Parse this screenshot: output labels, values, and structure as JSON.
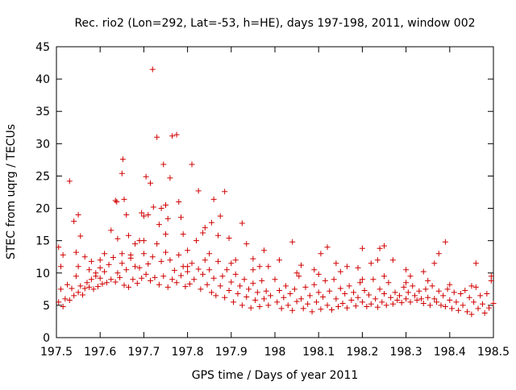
{
  "chart_data": {
    "type": "scatter",
    "title": "Rec. rio2 (Lon=292, Lat=-53, h=HE), days 197-198, 2011, window 002",
    "xlabel": "GPS time / Days of year 2011",
    "ylabel": "STEC from uqrg / TECUs",
    "xlim": [
      197.5,
      198.5
    ],
    "ylim": [
      0,
      45
    ],
    "xticks": [
      197.5,
      197.6,
      197.7,
      197.8,
      197.9,
      198.0,
      198.1,
      198.2,
      198.3,
      198.4,
      198.5
    ],
    "xtick_labels": [
      "197.5",
      "197.6",
      "197.7",
      "197.8",
      "197.9",
      "198",
      "198.1",
      "198.2",
      "198.3",
      "198.4",
      "198.5"
    ],
    "yticks": [
      0,
      5,
      10,
      15,
      20,
      25,
      30,
      35,
      40,
      45
    ],
    "ytick_labels": [
      "0",
      "5",
      "10",
      "15",
      "20",
      "25",
      "30",
      "35",
      "40",
      "45"
    ],
    "marker": "+",
    "grid": false,
    "series": [
      {
        "name": "STEC",
        "color": "#d00000",
        "points": [
          [
            197.505,
            14.0
          ],
          [
            197.51,
            11.0
          ],
          [
            197.515,
            12.8
          ],
          [
            197.53,
            24.2
          ],
          [
            197.54,
            18.0
          ],
          [
            197.545,
            13.2
          ],
          [
            197.55,
            19.0
          ],
          [
            197.555,
            15.7
          ],
          [
            197.565,
            12.5
          ],
          [
            197.575,
            10.5
          ],
          [
            197.58,
            11.8
          ],
          [
            197.59,
            9.5
          ],
          [
            197.6,
            10.8
          ],
          [
            197.61,
            13.0
          ],
          [
            197.625,
            16.6
          ],
          [
            197.635,
            21.2
          ],
          [
            197.638,
            21.0
          ],
          [
            197.64,
            15.3
          ],
          [
            197.65,
            25.4
          ],
          [
            197.652,
            27.6
          ],
          [
            197.655,
            21.4
          ],
          [
            197.66,
            19.0
          ],
          [
            197.665,
            15.8
          ],
          [
            197.67,
            12.8
          ],
          [
            197.68,
            14.5
          ],
          [
            197.69,
            15.0
          ],
          [
            197.695,
            19.3
          ],
          [
            197.7,
            18.8
          ],
          [
            197.705,
            24.9
          ],
          [
            197.71,
            19.0
          ],
          [
            197.715,
            23.9
          ],
          [
            197.72,
            41.5
          ],
          [
            197.722,
            20.2
          ],
          [
            197.73,
            31.0
          ],
          [
            197.735,
            17.5
          ],
          [
            197.74,
            20.0
          ],
          [
            197.745,
            26.8
          ],
          [
            197.75,
            20.5
          ],
          [
            197.755,
            18.4
          ],
          [
            197.76,
            24.7
          ],
          [
            197.765,
            31.2
          ],
          [
            197.775,
            31.4
          ],
          [
            197.78,
            21.0
          ],
          [
            197.785,
            18.6
          ],
          [
            197.79,
            16.0
          ],
          [
            197.8,
            13.5
          ],
          [
            197.81,
            26.8
          ],
          [
            197.825,
            22.7
          ],
          [
            197.835,
            16.2
          ],
          [
            197.84,
            17.0
          ],
          [
            197.855,
            17.8
          ],
          [
            197.86,
            21.4
          ],
          [
            197.87,
            15.8
          ],
          [
            197.875,
            18.8
          ],
          [
            197.885,
            22.6
          ],
          [
            197.895,
            15.4
          ],
          [
            197.91,
            12.0
          ],
          [
            197.925,
            17.7
          ],
          [
            197.935,
            14.5
          ],
          [
            197.95,
            12.2
          ],
          [
            197.965,
            11.0
          ],
          [
            197.975,
            13.5
          ],
          [
            197.985,
            11.0
          ],
          [
            198.01,
            12.0
          ],
          [
            198.04,
            14.8
          ],
          [
            198.06,
            11.2
          ],
          [
            198.09,
            10.5
          ],
          [
            198.105,
            13.0
          ],
          [
            198.12,
            14.0
          ],
          [
            198.14,
            11.5
          ],
          [
            198.165,
            11.0
          ],
          [
            198.19,
            10.8
          ],
          [
            198.2,
            13.8
          ],
          [
            198.22,
            11.5
          ],
          [
            198.235,
            12.0
          ],
          [
            198.24,
            13.8
          ],
          [
            198.25,
            14.2
          ],
          [
            198.27,
            12.0
          ],
          [
            198.3,
            10.5
          ],
          [
            198.31,
            9.5
          ],
          [
            198.34,
            10.2
          ],
          [
            198.365,
            11.5
          ],
          [
            198.375,
            13.0
          ],
          [
            198.39,
            14.8
          ],
          [
            198.46,
            11.5
          ],
          [
            197.505,
            5.5
          ],
          [
            197.51,
            7.5
          ],
          [
            197.515,
            4.8
          ],
          [
            197.52,
            6.0
          ],
          [
            197.525,
            8.2
          ],
          [
            197.53,
            5.8
          ],
          [
            197.535,
            7.6
          ],
          [
            197.54,
            6.5
          ],
          [
            197.545,
            9.5
          ],
          [
            197.55,
            7.0
          ],
          [
            197.555,
            8.0
          ],
          [
            197.56,
            6.6
          ],
          [
            197.565,
            7.6
          ],
          [
            197.57,
            8.5
          ],
          [
            197.575,
            7.8
          ],
          [
            197.58,
            9.0
          ],
          [
            197.585,
            7.5
          ],
          [
            197.59,
            10.0
          ],
          [
            197.595,
            7.9
          ],
          [
            197.6,
            9.2
          ],
          [
            197.605,
            8.3
          ],
          [
            197.61,
            10.2
          ],
          [
            197.615,
            8.5
          ],
          [
            197.62,
            11.3
          ],
          [
            197.625,
            9.0
          ],
          [
            197.63,
            12.4
          ],
          [
            197.635,
            8.6
          ],
          [
            197.64,
            10.0
          ],
          [
            197.645,
            9.3
          ],
          [
            197.65,
            11.5
          ],
          [
            197.655,
            8.1
          ],
          [
            197.66,
            10.5
          ],
          [
            197.665,
            7.8
          ],
          [
            197.67,
            12.3
          ],
          [
            197.675,
            9.0
          ],
          [
            197.68,
            11.0
          ],
          [
            197.685,
            8.4
          ],
          [
            197.69,
            10.8
          ],
          [
            197.695,
            9.2
          ],
          [
            197.7,
            13.0
          ],
          [
            197.705,
            9.8
          ],
          [
            197.71,
            11.4
          ],
          [
            197.715,
            8.8
          ],
          [
            197.72,
            12.5
          ],
          [
            197.725,
            9.3
          ],
          [
            197.73,
            14.5
          ],
          [
            197.735,
            8.2
          ],
          [
            197.74,
            11.8
          ],
          [
            197.745,
            9.5
          ],
          [
            197.75,
            13.2
          ],
          [
            197.755,
            7.8
          ],
          [
            197.76,
            12.0
          ],
          [
            197.765,
            9.0
          ],
          [
            197.77,
            10.4
          ],
          [
            197.775,
            8.5
          ],
          [
            197.78,
            12.8
          ],
          [
            197.785,
            9.6
          ],
          [
            197.79,
            11.0
          ],
          [
            197.795,
            7.9
          ],
          [
            197.8,
            10.2
          ],
          [
            197.805,
            8.3
          ],
          [
            197.81,
            11.5
          ],
          [
            197.815,
            9.0
          ],
          [
            197.82,
            15.0
          ],
          [
            197.825,
            10.6
          ],
          [
            197.83,
            7.5
          ],
          [
            197.835,
            9.8
          ],
          [
            197.84,
            12.0
          ],
          [
            197.845,
            8.2
          ],
          [
            197.85,
            10.5
          ],
          [
            197.855,
            7.0
          ],
          [
            197.86,
            9.2
          ],
          [
            197.865,
            6.5
          ],
          [
            197.87,
            11.8
          ],
          [
            197.875,
            8.0
          ],
          [
            197.88,
            9.5
          ],
          [
            197.885,
            6.2
          ],
          [
            197.89,
            10.5
          ],
          [
            197.895,
            7.3
          ],
          [
            197.9,
            8.6
          ],
          [
            197.905,
            5.5
          ],
          [
            197.91,
            9.8
          ],
          [
            197.915,
            6.8
          ],
          [
            197.92,
            8.0
          ],
          [
            197.925,
            5.0
          ],
          [
            197.93,
            9.0
          ],
          [
            197.935,
            6.3
          ],
          [
            197.94,
            7.5
          ],
          [
            197.945,
            4.6
          ],
          [
            197.95,
            8.4
          ],
          [
            197.955,
            5.8
          ],
          [
            197.96,
            7.0
          ],
          [
            197.965,
            4.8
          ],
          [
            197.97,
            8.8
          ],
          [
            197.975,
            6.0
          ],
          [
            197.98,
            7.2
          ],
          [
            197.985,
            5.0
          ],
          [
            197.99,
            6.5
          ],
          [
            198.005,
            5.5
          ],
          [
            198.01,
            7.3
          ],
          [
            198.015,
            4.5
          ],
          [
            198.02,
            6.2
          ],
          [
            198.025,
            8.0
          ],
          [
            198.03,
            5.0
          ],
          [
            198.035,
            6.8
          ],
          [
            198.04,
            4.2
          ],
          [
            198.045,
            7.5
          ],
          [
            198.05,
            5.6
          ],
          [
            198.055,
            9.5
          ],
          [
            198.06,
            6.0
          ],
          [
            198.065,
            4.5
          ],
          [
            198.07,
            7.8
          ],
          [
            198.075,
            5.2
          ],
          [
            198.08,
            6.5
          ],
          [
            198.085,
            4.0
          ],
          [
            198.09,
            8.2
          ],
          [
            198.095,
            5.5
          ],
          [
            198.1,
            7.0
          ],
          [
            198.105,
            4.4
          ],
          [
            198.11,
            6.3
          ],
          [
            198.115,
            8.8
          ],
          [
            198.12,
            5.0
          ],
          [
            198.125,
            7.2
          ],
          [
            198.13,
            4.3
          ],
          [
            198.135,
            9.0
          ],
          [
            198.14,
            6.0
          ],
          [
            198.145,
            4.8
          ],
          [
            198.15,
            7.6
          ],
          [
            198.155,
            5.3
          ],
          [
            198.16,
            6.8
          ],
          [
            198.165,
            4.6
          ],
          [
            198.17,
            8.0
          ],
          [
            198.175,
            5.8
          ],
          [
            198.18,
            7.0
          ],
          [
            198.185,
            4.9
          ],
          [
            198.19,
            6.2
          ],
          [
            198.195,
            8.5
          ],
          [
            198.2,
            5.5
          ],
          [
            198.205,
            7.3
          ],
          [
            198.21,
            4.8
          ],
          [
            198.215,
            6.6
          ],
          [
            198.22,
            5.2
          ],
          [
            198.225,
            9.0
          ],
          [
            198.23,
            6.0
          ],
          [
            198.235,
            4.7
          ],
          [
            198.24,
            7.5
          ],
          [
            198.245,
            5.5
          ],
          [
            198.25,
            6.8
          ],
          [
            198.255,
            5.0
          ],
          [
            198.26,
            8.5
          ],
          [
            198.265,
            6.2
          ],
          [
            198.27,
            5.2
          ],
          [
            198.275,
            7.0
          ],
          [
            198.28,
            5.8
          ],
          [
            198.285,
            6.5
          ],
          [
            198.29,
            5.4
          ],
          [
            198.295,
            7.8
          ],
          [
            198.3,
            6.0
          ],
          [
            198.305,
            7.0
          ],
          [
            198.31,
            5.5
          ],
          [
            198.315,
            8.0
          ],
          [
            198.32,
            6.5
          ],
          [
            198.325,
            5.8
          ],
          [
            198.33,
            7.2
          ],
          [
            198.335,
            6.0
          ],
          [
            198.34,
            5.3
          ],
          [
            198.345,
            7.5
          ],
          [
            198.35,
            6.2
          ],
          [
            198.355,
            5.0
          ],
          [
            198.36,
            8.0
          ],
          [
            198.365,
            6.0
          ],
          [
            198.37,
            5.5
          ],
          [
            198.375,
            7.2
          ],
          [
            198.38,
            5.0
          ],
          [
            198.385,
            6.5
          ],
          [
            198.39,
            4.8
          ],
          [
            198.395,
            7.5
          ],
          [
            198.4,
            5.8
          ],
          [
            198.405,
            4.5
          ],
          [
            198.41,
            7.0
          ],
          [
            198.415,
            5.5
          ],
          [
            198.42,
            4.2
          ],
          [
            198.425,
            6.8
          ],
          [
            198.43,
            5.0
          ],
          [
            198.435,
            7.3
          ],
          [
            198.44,
            4.0
          ],
          [
            198.445,
            6.2
          ],
          [
            198.45,
            3.6
          ],
          [
            198.455,
            5.5
          ],
          [
            198.46,
            7.8
          ],
          [
            198.465,
            4.5
          ],
          [
            198.47,
            6.5
          ],
          [
            198.475,
            5.2
          ],
          [
            198.48,
            3.8
          ],
          [
            198.485,
            6.8
          ],
          [
            198.49,
            4.6
          ],
          [
            198.495,
            8.8
          ],
          [
            198.5,
            5.3
          ],
          [
            198.495,
            9.5
          ],
          [
            198.45,
            8.0
          ],
          [
            198.4,
            8.2
          ],
          [
            198.35,
            8.8
          ],
          [
            198.3,
            8.5
          ],
          [
            198.25,
            9.5
          ],
          [
            198.2,
            9.0
          ],
          [
            198.15,
            10.2
          ],
          [
            198.1,
            9.8
          ],
          [
            198.05,
            10.0
          ],
          [
            198.0,
            9.0
          ],
          [
            197.95,
            10.5
          ],
          [
            197.9,
            11.5
          ],
          [
            197.85,
            13.0
          ],
          [
            197.8,
            11.0
          ],
          [
            197.75,
            16.0
          ],
          [
            197.7,
            15.0
          ],
          [
            197.65,
            13.0
          ],
          [
            197.6,
            12.0
          ],
          [
            197.55,
            11.0
          ]
        ]
      }
    ]
  }
}
